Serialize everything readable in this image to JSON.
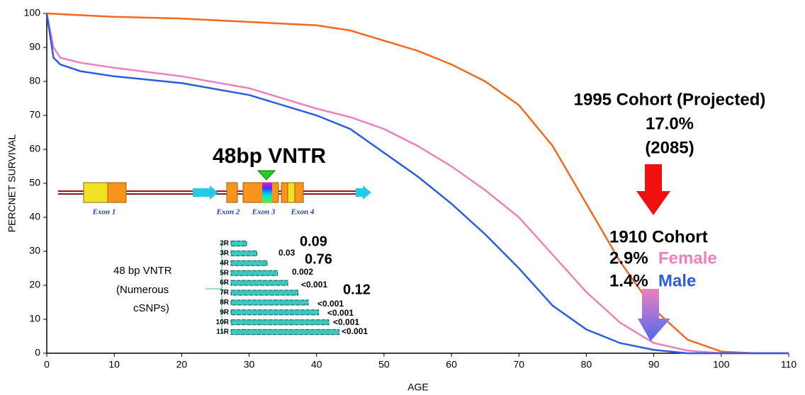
{
  "chart_data": {
    "type": "line",
    "x": [
      0,
      1,
      2,
      5,
      10,
      20,
      30,
      40,
      45,
      50,
      55,
      60,
      65,
      70,
      75,
      80,
      85,
      90,
      95,
      100,
      105,
      110
    ],
    "series": [
      {
        "name": "1995 Cohort (Projected)",
        "color": "#f26a1b",
        "values": [
          100,
          99.9,
          99.8,
          99.5,
          99,
          98.5,
          97.5,
          96.5,
          95,
          92,
          89,
          85,
          80,
          73,
          61,
          44,
          27,
          13,
          4,
          0.5,
          0,
          0
        ]
      },
      {
        "name": "Female",
        "color": "#f07fc0",
        "values": [
          100,
          90,
          87,
          85.5,
          84,
          81.5,
          78,
          72,
          69.5,
          66,
          61,
          55,
          48,
          40,
          29,
          18,
          9,
          3,
          0.8,
          0,
          0,
          0
        ]
      },
      {
        "name": "Male",
        "color": "#2d5be3",
        "values": [
          100,
          87,
          85,
          83,
          81.5,
          79.5,
          76,
          70,
          66,
          59,
          52,
          44,
          35,
          25,
          14,
          7,
          3,
          1,
          0,
          0,
          0,
          0
        ]
      }
    ],
    "xlim": [
      0,
      110
    ],
    "ylim": [
      0,
      100
    ],
    "xticks": [
      0,
      10,
      20,
      30,
      40,
      50,
      60,
      70,
      80,
      90,
      100,
      110
    ],
    "yticks": [
      0,
      10,
      20,
      30,
      40,
      50,
      60,
      70,
      80,
      90,
      100
    ],
    "x_label": "AGE",
    "y_label": "PERCNET SURVIVAL",
    "annotations": {
      "projected": [
        "1995 Cohort (Projected)",
        "17.0%",
        "(2085)"
      ],
      "cohort_1910": "1910 Cohort",
      "female_value": "2.9%",
      "male_value": "1.4%"
    },
    "inset": {
      "title": "48bp VNTR",
      "exons": [
        "Exon 1",
        "Exon 2",
        "Exon 3",
        "Exon 4"
      ],
      "vntr_note": [
        "48 bp VNTR",
        "(Numerous",
        "cSNPs)"
      ],
      "repeats": [
        "2R",
        "3R",
        "4R",
        "5R",
        "6R",
        "7R",
        "8R",
        "9R",
        "10R",
        "11R"
      ],
      "p_values": [
        "0.09",
        "0.03",
        "0.76",
        "0.002",
        "<0.001",
        "0.12",
        "<0.001",
        "<0.001",
        "<0.001",
        "<0.001"
      ]
    }
  }
}
